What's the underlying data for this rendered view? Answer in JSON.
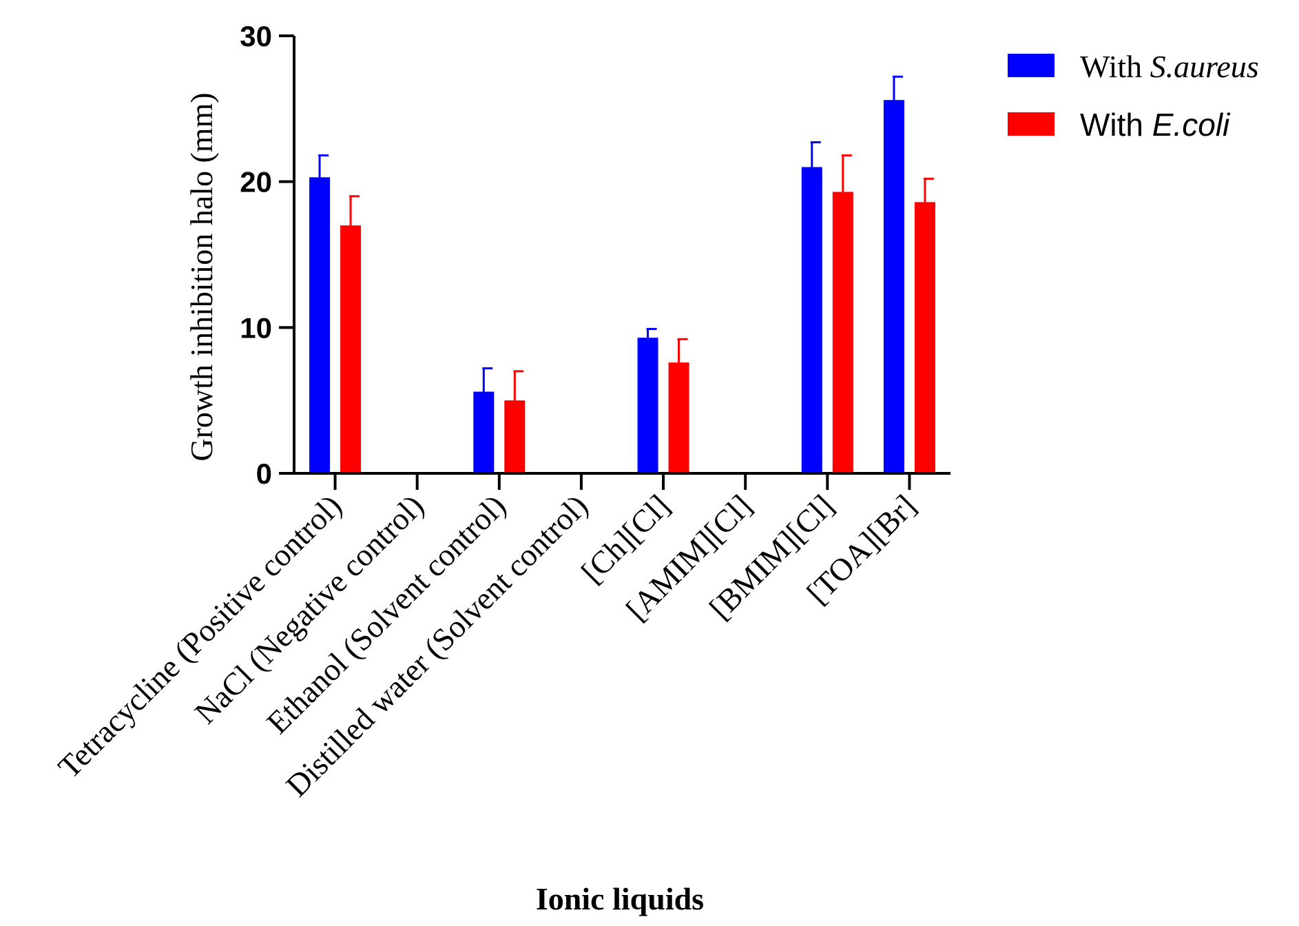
{
  "chart_data": {
    "type": "bar",
    "title": "",
    "xlabel": "Ionic liquids",
    "ylabel": "Growth inhibition halo (mm)",
    "ylim": [
      0,
      30
    ],
    "yticks": [
      "0",
      "10",
      "20",
      "30"
    ],
    "categories": [
      "Tetracycline (Positive control)",
      "NaCl (Negative control)",
      "Ethanol (Solvent control)",
      "Distilled water (Solvent control)",
      "[Ch][Cl]",
      "[AMIM][Cl]",
      "[BMIM][Cl]",
      "[TOA][Br]"
    ],
    "series": [
      {
        "name": "With S.aureus",
        "legend_prefix": "With ",
        "legend_species": "S.aureus",
        "color": "#0000ff",
        "values": [
          20.3,
          0,
          5.6,
          0,
          9.3,
          0,
          21.0,
          25.6
        ],
        "errors": [
          1.5,
          0,
          1.6,
          0,
          0.6,
          0,
          1.7,
          1.6
        ]
      },
      {
        "name": "With E.coli",
        "legend_prefix": "With ",
        "legend_species": "E.coli",
        "color": "#ff0000",
        "values": [
          17.0,
          0,
          5.0,
          0,
          7.6,
          0,
          19.3,
          18.6
        ],
        "errors": [
          2.0,
          0,
          2.0,
          0,
          1.6,
          0,
          2.5,
          1.6
        ]
      }
    ],
    "legend_position": "top-right",
    "grid": false
  }
}
